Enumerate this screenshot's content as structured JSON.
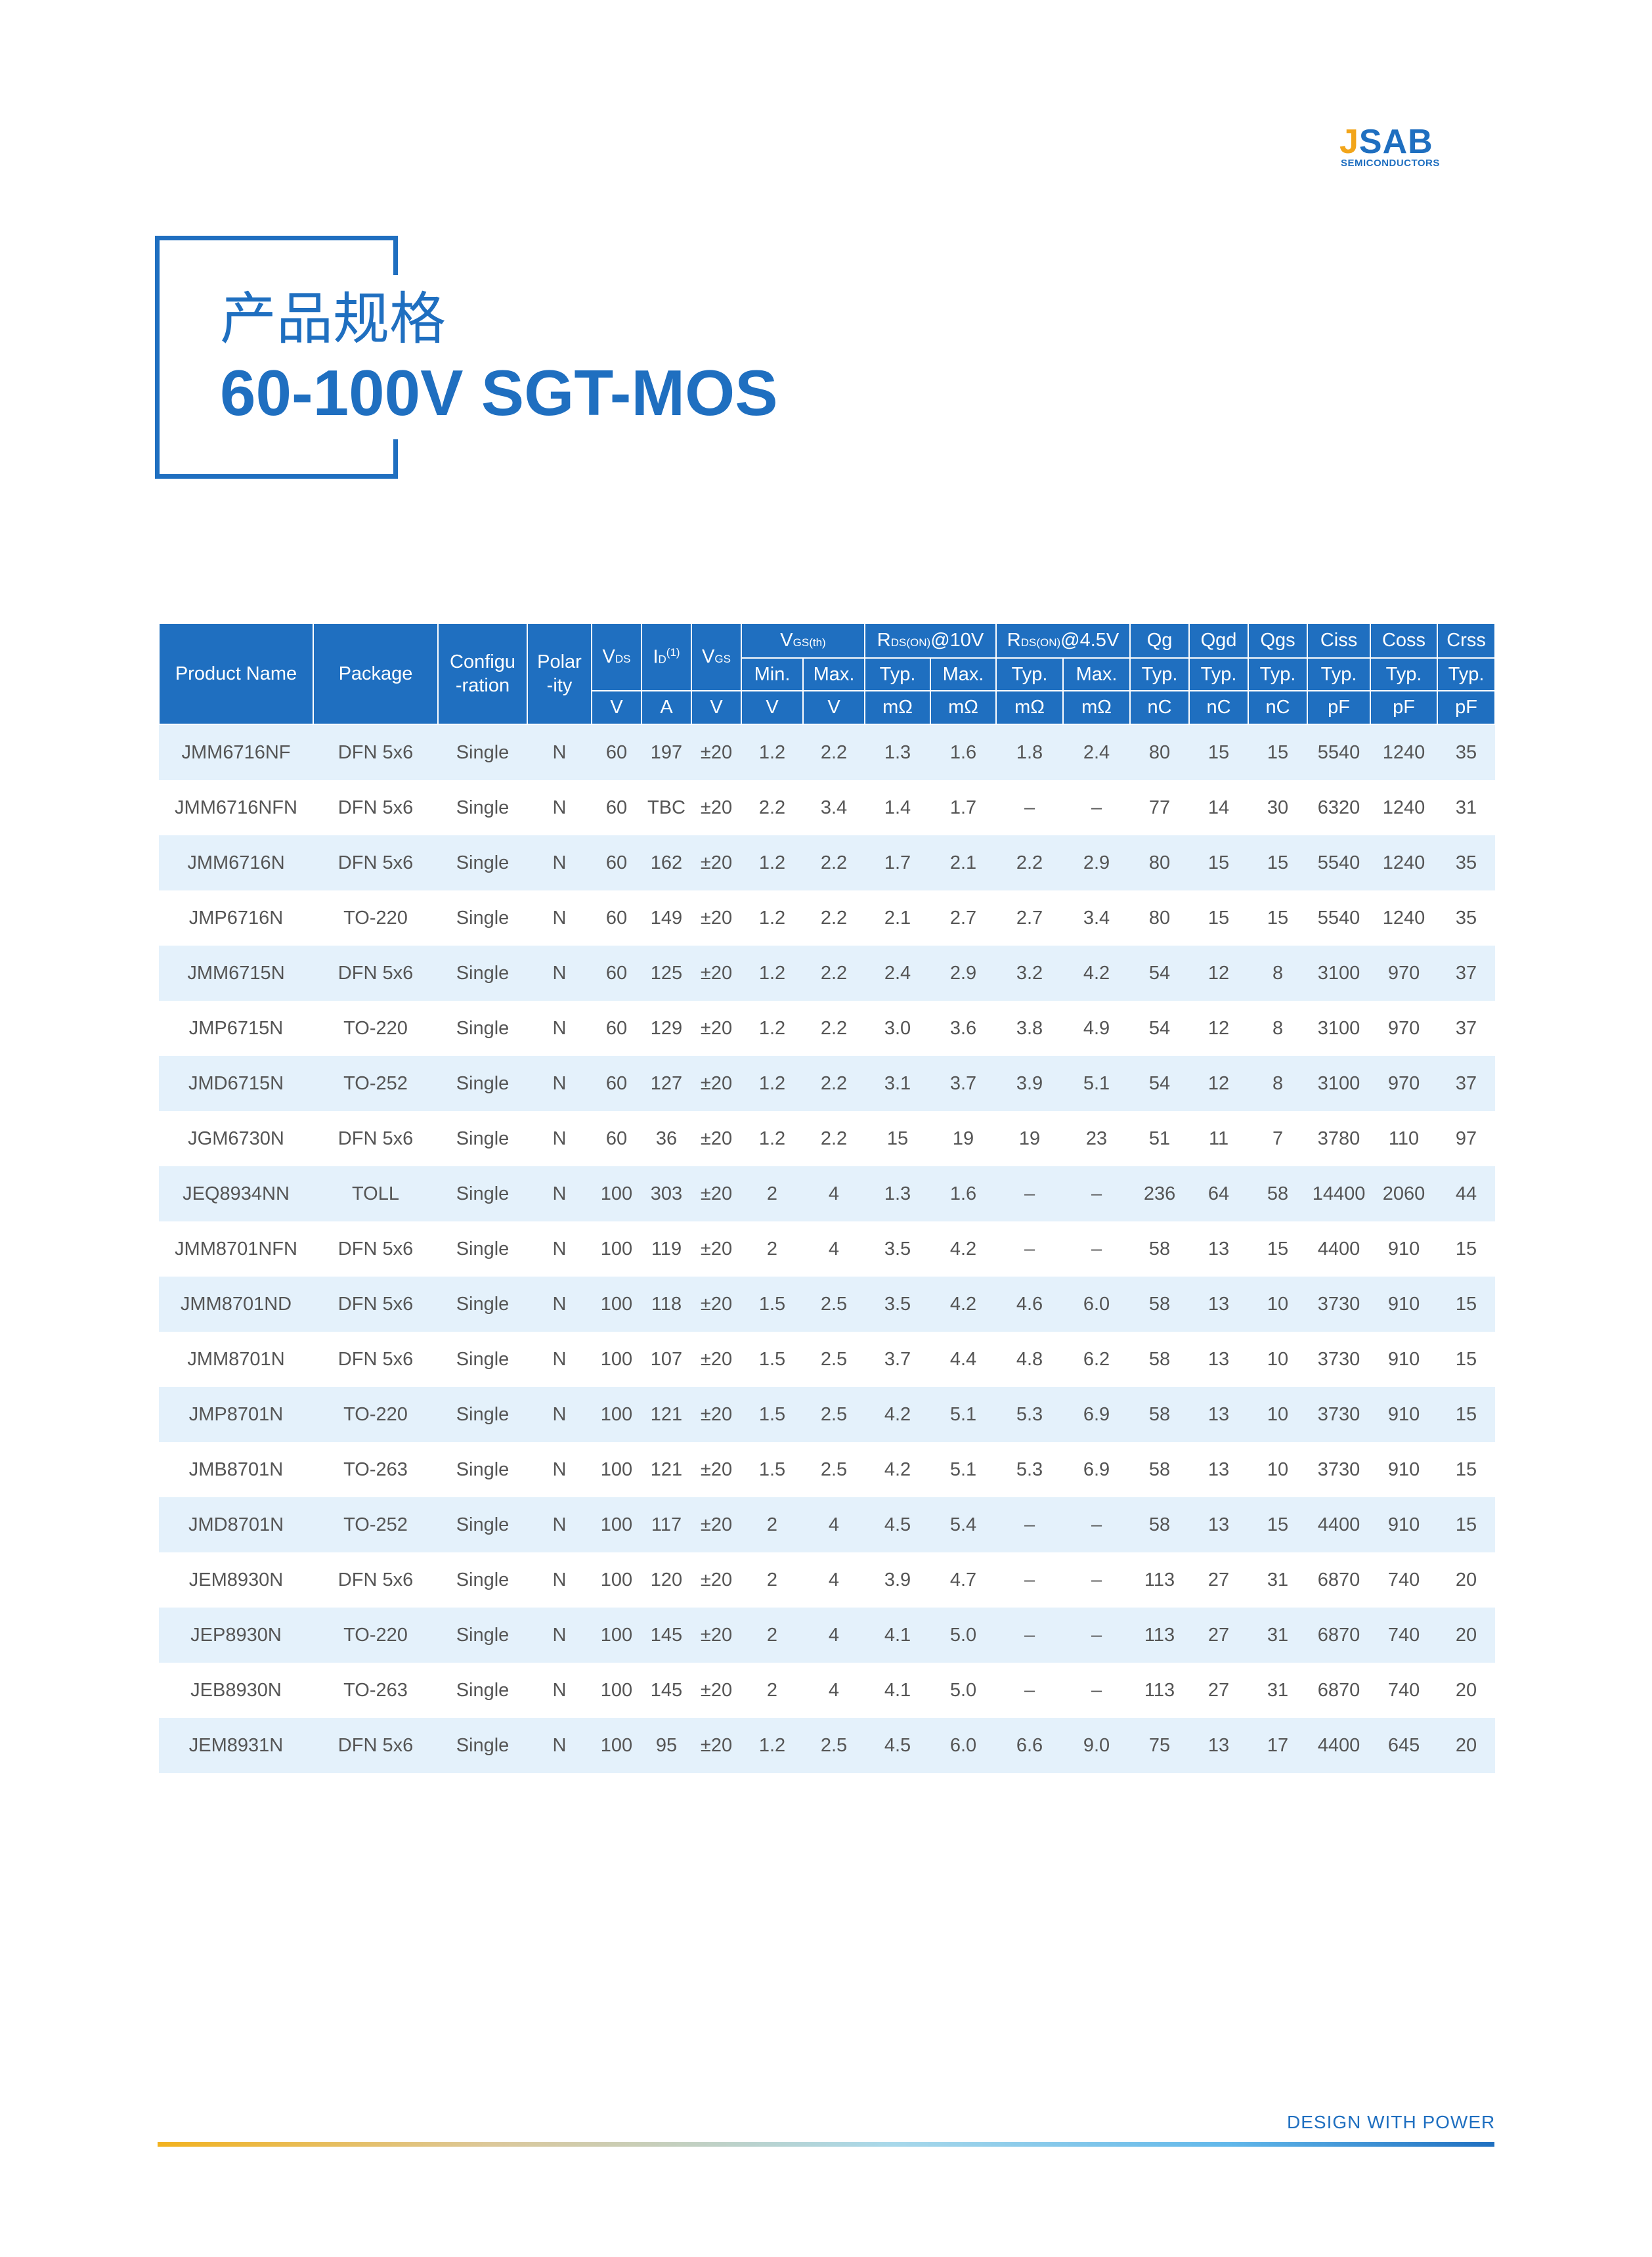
{
  "logo": {
    "text_j": "J",
    "text_rest": "SAB",
    "subtext": "SEMICONDUCTORS",
    "colors": {
      "primary": "#1f6fc0",
      "accent": "#f2a51a"
    }
  },
  "title": {
    "cn": "产品规格",
    "en": "60-100V SGT-MOS"
  },
  "table": {
    "head": {
      "product_name": "Product Name",
      "package": "Package",
      "config_1": "Configu",
      "config_2": "-ration",
      "polar_1": "Polar",
      "polar_2": "-ity",
      "vds_main": "V",
      "vds_sub": "DS",
      "id_main": "I",
      "id_sub": "D",
      "id_sup": "(1)",
      "vgs_main": "V",
      "vgs_sub": "GS",
      "vgsth_main": "V",
      "vgsth_sub": "GS(th)",
      "rds10_main": "R",
      "rds10_sub": "DS(ON)",
      "rds10_tail": "@10V",
      "rds45_main": "R",
      "rds45_sub": "DS(ON)",
      "rds45_tail": "@4.5V",
      "qg": "Qg",
      "qgd": "Qgd",
      "qgs": "Qgs",
      "ciss": "Ciss",
      "coss": "Coss",
      "crss": "Crss",
      "min": "Min.",
      "max": "Max.",
      "typ": "Typ.",
      "unit_v": "V",
      "unit_a": "A",
      "unit_mohm": "mΩ",
      "unit_nc": "nC",
      "unit_pf": "pF"
    },
    "rows": [
      [
        "JMM6716NF",
        "DFN 5x6",
        "Single",
        "N",
        "60",
        "197",
        "±20",
        "1.2",
        "2.2",
        "1.3",
        "1.6",
        "1.8",
        "2.4",
        "80",
        "15",
        "15",
        "5540",
        "1240",
        "35"
      ],
      [
        "JMM6716NFN",
        "DFN 5x6",
        "Single",
        "N",
        "60",
        "TBC",
        "±20",
        "2.2",
        "3.4",
        "1.4",
        "1.7",
        "–",
        "–",
        "77",
        "14",
        "30",
        "6320",
        "1240",
        "31"
      ],
      [
        "JMM6716N",
        "DFN 5x6",
        "Single",
        "N",
        "60",
        "162",
        "±20",
        "1.2",
        "2.2",
        "1.7",
        "2.1",
        "2.2",
        "2.9",
        "80",
        "15",
        "15",
        "5540",
        "1240",
        "35"
      ],
      [
        "JMP6716N",
        "TO-220",
        "Single",
        "N",
        "60",
        "149",
        "±20",
        "1.2",
        "2.2",
        "2.1",
        "2.7",
        "2.7",
        "3.4",
        "80",
        "15",
        "15",
        "5540",
        "1240",
        "35"
      ],
      [
        "JMM6715N",
        "DFN 5x6",
        "Single",
        "N",
        "60",
        "125",
        "±20",
        "1.2",
        "2.2",
        "2.4",
        "2.9",
        "3.2",
        "4.2",
        "54",
        "12",
        "8",
        "3100",
        "970",
        "37"
      ],
      [
        "JMP6715N",
        "TO-220",
        "Single",
        "N",
        "60",
        "129",
        "±20",
        "1.2",
        "2.2",
        "3.0",
        "3.6",
        "3.8",
        "4.9",
        "54",
        "12",
        "8",
        "3100",
        "970",
        "37"
      ],
      [
        "JMD6715N",
        "TO-252",
        "Single",
        "N",
        "60",
        "127",
        "±20",
        "1.2",
        "2.2",
        "3.1",
        "3.7",
        "3.9",
        "5.1",
        "54",
        "12",
        "8",
        "3100",
        "970",
        "37"
      ],
      [
        "JGM6730N",
        "DFN 5x6",
        "Single",
        "N",
        "60",
        "36",
        "±20",
        "1.2",
        "2.2",
        "15",
        "19",
        "19",
        "23",
        "51",
        "11",
        "7",
        "3780",
        "110",
        "97"
      ],
      [
        "JEQ8934NN",
        "TOLL",
        "Single",
        "N",
        "100",
        "303",
        "±20",
        "2",
        "4",
        "1.3",
        "1.6",
        "–",
        "–",
        "236",
        "64",
        "58",
        "14400",
        "2060",
        "44"
      ],
      [
        "JMM8701NFN",
        "DFN 5x6",
        "Single",
        "N",
        "100",
        "119",
        "±20",
        "2",
        "4",
        "3.5",
        "4.2",
        "–",
        "–",
        "58",
        "13",
        "15",
        "4400",
        "910",
        "15"
      ],
      [
        "JMM8701ND",
        "DFN 5x6",
        "Single",
        "N",
        "100",
        "118",
        "±20",
        "1.5",
        "2.5",
        "3.5",
        "4.2",
        "4.6",
        "6.0",
        "58",
        "13",
        "10",
        "3730",
        "910",
        "15"
      ],
      [
        "JMM8701N",
        "DFN 5x6",
        "Single",
        "N",
        "100",
        "107",
        "±20",
        "1.5",
        "2.5",
        "3.7",
        "4.4",
        "4.8",
        "6.2",
        "58",
        "13",
        "10",
        "3730",
        "910",
        "15"
      ],
      [
        "JMP8701N",
        "TO-220",
        "Single",
        "N",
        "100",
        "121",
        "±20",
        "1.5",
        "2.5",
        "4.2",
        "5.1",
        "5.3",
        "6.9",
        "58",
        "13",
        "10",
        "3730",
        "910",
        "15"
      ],
      [
        "JMB8701N",
        "TO-263",
        "Single",
        "N",
        "100",
        "121",
        "±20",
        "1.5",
        "2.5",
        "4.2",
        "5.1",
        "5.3",
        "6.9",
        "58",
        "13",
        "10",
        "3730",
        "910",
        "15"
      ],
      [
        "JMD8701N",
        "TO-252",
        "Single",
        "N",
        "100",
        "117",
        "±20",
        "2",
        "4",
        "4.5",
        "5.4",
        "–",
        "–",
        "58",
        "13",
        "15",
        "4400",
        "910",
        "15"
      ],
      [
        "JEM8930N",
        "DFN 5x6",
        "Single",
        "N",
        "100",
        "120",
        "±20",
        "2",
        "4",
        "3.9",
        "4.7",
        "–",
        "–",
        "113",
        "27",
        "31",
        "6870",
        "740",
        "20"
      ],
      [
        "JEP8930N",
        "TO-220",
        "Single",
        "N",
        "100",
        "145",
        "±20",
        "2",
        "4",
        "4.1",
        "5.0",
        "–",
        "–",
        "113",
        "27",
        "31",
        "6870",
        "740",
        "20"
      ],
      [
        "JEB8930N",
        "TO-263",
        "Single",
        "N",
        "100",
        "145",
        "±20",
        "2",
        "4",
        "4.1",
        "5.0",
        "–",
        "–",
        "113",
        "27",
        "31",
        "6870",
        "740",
        "20"
      ],
      [
        "JEM8931N",
        "DFN 5x6",
        "Single",
        "N",
        "100",
        "95",
        "±20",
        "1.2",
        "2.5",
        "4.5",
        "6.0",
        "6.6",
        "9.0",
        "75",
        "13",
        "17",
        "4400",
        "645",
        "20"
      ]
    ]
  },
  "footer": {
    "slogan": "DESIGN WITH POWER"
  }
}
